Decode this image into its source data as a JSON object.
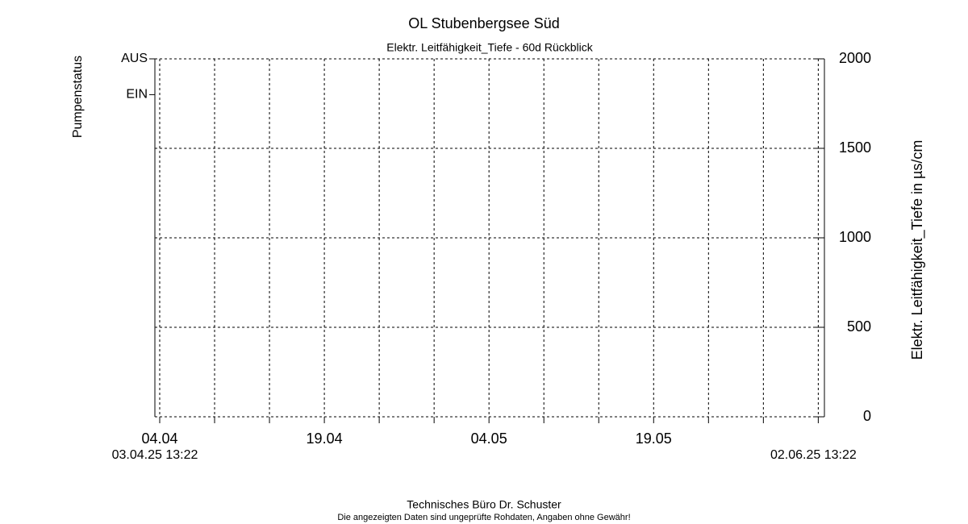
{
  "chart_data": {
    "type": "line",
    "title": "OL Stubenbergsee Süd",
    "subtitle": "Elektr. Leitfähigkeit_Tiefe - 60d Rückblick",
    "y_label": "Elektr. Leitfähigkeit_Tiefe in µs/cm",
    "y2_label": "Pumpenstatus",
    "xlim": [
      0,
      61
    ],
    "xticks": [
      {
        "value": 0.44,
        "label": "04.04"
      },
      {
        "value": 15.44,
        "label": "19.04"
      },
      {
        "value": 30.44,
        "label": "04.05"
      },
      {
        "value": 45.44,
        "label": "19.05"
      }
    ],
    "xminorticks": [
      5.44,
      10.44,
      20.44,
      25.44,
      35.44,
      40.44,
      50.44,
      55.44,
      60.44
    ],
    "x_start_label": {
      "value": 0,
      "label": "03.04.25 13:22"
    },
    "x_end_label": {
      "value": 60,
      "label": "02.06.25 13:22"
    },
    "ylim": [
      0,
      2000
    ],
    "yticks": [
      0,
      500,
      1000,
      1500,
      2000
    ],
    "y2lim": [
      -9,
      1
    ],
    "y2ticks": [
      {
        "value": 1,
        "label": "AUS"
      },
      {
        "value": 0,
        "label": "EIN"
      }
    ],
    "y2color": "#ff0000",
    "grid": true,
    "series": [],
    "footer": "Technisches Büro Dr. Schuster",
    "disclaimer": "Die angezeigten Daten sind ungeprüfte Rohdaten, Angaben ohne Gewähr!"
  }
}
